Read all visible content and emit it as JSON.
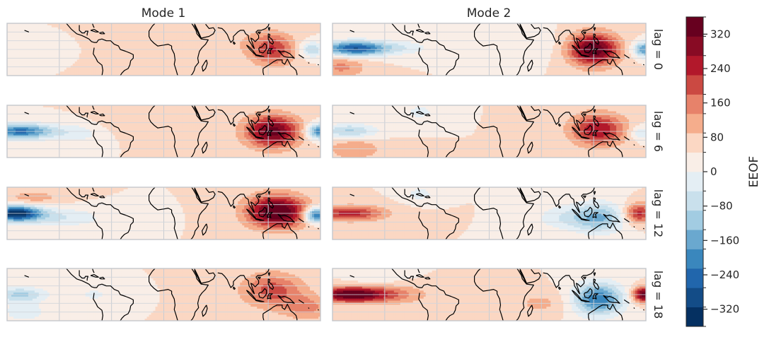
{
  "chart_data": {
    "type": "heatmap",
    "description_free_layout": "2 columns x 4 rows of filled-contour world maps (tropical band) with shared colorbar",
    "columns": [
      "Mode 1",
      "Mode 2"
    ],
    "rows": [
      "lag = 0",
      "lag = 6",
      "lag = 12",
      "lag = 18"
    ],
    "colorbar": {
      "label": "EEOF",
      "colormap": "RdBu_r",
      "range": [
        -360,
        360
      ],
      "step": 40,
      "tick_values": [
        -320,
        -240,
        -160,
        -80,
        0,
        80,
        160,
        240,
        320
      ],
      "tick_labels": [
        "−320",
        "−240",
        "−160",
        "−80",
        "0",
        "80",
        "160",
        "240",
        "320"
      ],
      "colors": [
        "#053061",
        "#134c87",
        "#2166ac",
        "#3a87bd",
        "#6aa8cf",
        "#a2cce2",
        "#c9e0ec",
        "#e4eef4",
        "#f9eee7",
        "#fbd7c3",
        "#f5ad8c",
        "#e7826a",
        "#cb4942",
        "#b2182b",
        "#880b24",
        "#67001f"
      ]
    },
    "lat_range": [
      -30,
      30
    ],
    "lon_range": [
      -180,
      180
    ],
    "grid": true,
    "panels": [
      {
        "mode": "Mode 1",
        "lag": 0,
        "blobs": [
          {
            "lon": -168,
            "lat": 0,
            "amp": -40,
            "sx": 18,
            "sy": 6
          },
          {
            "lon": 125,
            "lat": 0,
            "amp": 160,
            "sx": 18,
            "sy": 13
          },
          {
            "lon": 170,
            "lat": 0,
            "amp": -120,
            "sx": 10,
            "sy": 6
          },
          {
            "lon": 60,
            "lat": 8,
            "amp": 30,
            "sx": 40,
            "sy": 14
          }
        ]
      },
      {
        "mode": "Mode 2",
        "lag": 0,
        "blobs": [
          {
            "lon": -155,
            "lat": 1,
            "amp": -280,
            "sx": 26,
            "sy": 6
          },
          {
            "lon": -100,
            "lat": 2,
            "amp": -60,
            "sx": 25,
            "sy": 6
          },
          {
            "lon": -170,
            "lat": -20,
            "amp": 90,
            "sx": 20,
            "sy": 9
          },
          {
            "lon": 120,
            "lat": 0,
            "amp": 280,
            "sx": 20,
            "sy": 13
          },
          {
            "lon": 178,
            "lat": 0,
            "amp": -200,
            "sx": 9,
            "sy": 6
          },
          {
            "lon": 50,
            "lat": 5,
            "amp": -30,
            "sx": 25,
            "sy": 12
          }
        ]
      },
      {
        "mode": "Mode 1",
        "lag": 6,
        "blobs": [
          {
            "lon": -165,
            "lat": 0,
            "amp": -250,
            "sx": 26,
            "sy": 6
          },
          {
            "lon": -100,
            "lat": -2,
            "amp": -60,
            "sx": 22,
            "sy": 8
          },
          {
            "lon": 125,
            "lat": 0,
            "amp": 260,
            "sx": 22,
            "sy": 13
          },
          {
            "lon": 178,
            "lat": 0,
            "amp": -230,
            "sx": 10,
            "sy": 6
          },
          {
            "lon": -30,
            "lat": 10,
            "amp": 40,
            "sx": 30,
            "sy": 10
          }
        ]
      },
      {
        "mode": "Mode 2",
        "lag": 6,
        "blobs": [
          {
            "lon": -160,
            "lat": 0,
            "amp": -130,
            "sx": 22,
            "sy": 6
          },
          {
            "lon": -155,
            "lat": -20,
            "amp": 80,
            "sx": 22,
            "sy": 9
          },
          {
            "lon": 125,
            "lat": 2,
            "amp": 200,
            "sx": 22,
            "sy": 13
          },
          {
            "lon": 175,
            "lat": -2,
            "amp": -80,
            "sx": 10,
            "sy": 6
          },
          {
            "lon": -80,
            "lat": 22,
            "amp": -60,
            "sx": 12,
            "sy": 6
          }
        ]
      },
      {
        "mode": "Mode 1",
        "lag": 12,
        "blobs": [
          {
            "lon": -170,
            "lat": 0,
            "amp": -340,
            "sx": 20,
            "sy": 6
          },
          {
            "lon": -120,
            "lat": -5,
            "amp": -80,
            "sx": 35,
            "sy": 8
          },
          {
            "lon": 130,
            "lat": 2,
            "amp": 300,
            "sx": 24,
            "sy": 13
          },
          {
            "lon": 175,
            "lat": -2,
            "amp": -280,
            "sx": 10,
            "sy": 6
          },
          {
            "lon": -150,
            "lat": 18,
            "amp": 60,
            "sx": 25,
            "sy": 6
          }
        ]
      },
      {
        "mode": "Mode 2",
        "lag": 12,
        "blobs": [
          {
            "lon": -160,
            "lat": 0,
            "amp": 180,
            "sx": 28,
            "sy": 6
          },
          {
            "lon": -80,
            "lat": 22,
            "amp": -60,
            "sx": 12,
            "sy": 6
          },
          {
            "lon": 125,
            "lat": -5,
            "amp": -170,
            "sx": 22,
            "sy": 12
          },
          {
            "lon": 172,
            "lat": 0,
            "amp": 180,
            "sx": 12,
            "sy": 8
          },
          {
            "lon": 80,
            "lat": -5,
            "amp": -60,
            "sx": 20,
            "sy": 10
          }
        ]
      },
      {
        "mode": "Mode 1",
        "lag": 18,
        "blobs": [
          {
            "lon": -165,
            "lat": 0,
            "amp": -130,
            "sx": 22,
            "sy": 6
          },
          {
            "lon": -160,
            "lat": -20,
            "amp": -70,
            "sx": 18,
            "sy": 8
          },
          {
            "lon": 125,
            "lat": 5,
            "amp": 140,
            "sx": 25,
            "sy": 14
          },
          {
            "lon": 165,
            "lat": -15,
            "amp": 90,
            "sx": 20,
            "sy": 10
          },
          {
            "lon": -80,
            "lat": 0,
            "amp": -50,
            "sx": 15,
            "sy": 6
          }
        ]
      },
      {
        "mode": "Mode 2",
        "lag": 18,
        "blobs": [
          {
            "lon": -160,
            "lat": 0,
            "amp": 280,
            "sx": 28,
            "sy": 6
          },
          {
            "lon": -110,
            "lat": 0,
            "amp": 80,
            "sx": 30,
            "sy": 8
          },
          {
            "lon": 125,
            "lat": -5,
            "amp": -240,
            "sx": 20,
            "sy": 13
          },
          {
            "lon": 178,
            "lat": 0,
            "amp": 280,
            "sx": 9,
            "sy": 6
          },
          {
            "lon": 60,
            "lat": -10,
            "amp": 50,
            "sx": 25,
            "sy": 10
          },
          {
            "lon": -130,
            "lat": 20,
            "amp": -40,
            "sx": 20,
            "sy": 6
          }
        ]
      }
    ]
  }
}
